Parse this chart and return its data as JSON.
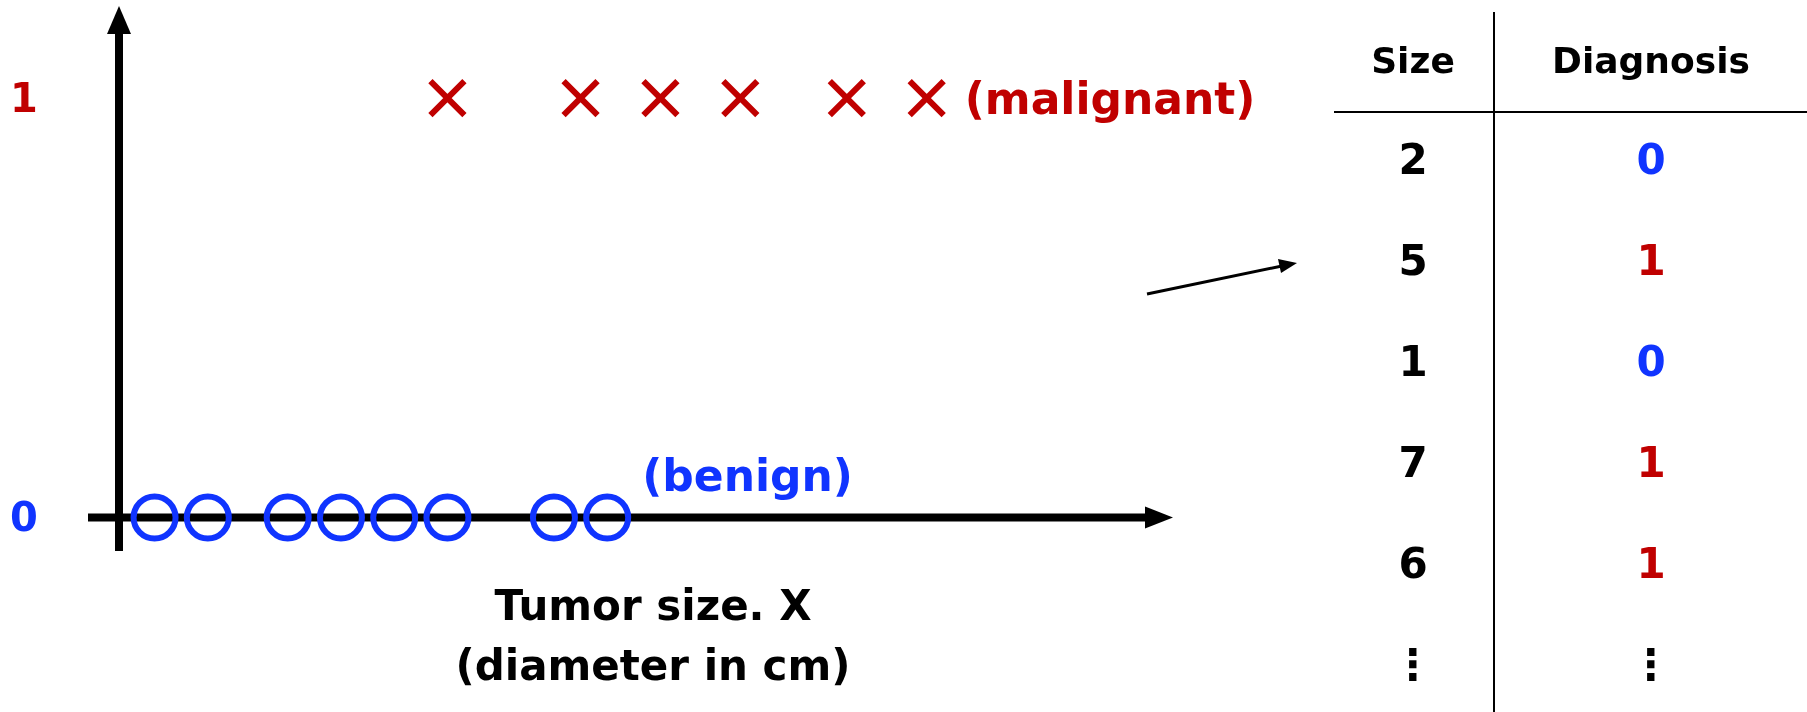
{
  "chart_data": [
    {
      "type": "scatter",
      "xlabel": "Tumor size. X\n(diameter in cm)",
      "categories": [
        null,
        null,
        null,
        null,
        null,
        null,
        null,
        null,
        null,
        null,
        null,
        null,
        null,
        null,
        null,
        null,
        null,
        null,
        null,
        null,
        null,
        null,
        null,
        null,
        null,
        null,
        null,
        null,
        null,
        null,
        null,
        null,
        null,
        null,
        null,
        null,
        null,
        null,
        null,
        null
      ],
      "ylim": [
        -0.08,
        1.22
      ],
      "yticks": [
        0,
        1
      ],
      "tick_labels": "y",
      "legend": "right",
      "series": [
        {
          "name": "(benign)",
          "color": "#1034ff",
          "marker": "circle",
          "values": [
            null,
            null,
            0,
            null,
            0,
            null,
            null,
            0,
            null,
            0,
            null,
            0,
            null,
            0,
            null,
            null,
            null,
            0,
            null,
            0,
            null,
            null,
            null,
            null,
            null,
            null,
            null,
            null,
            null,
            null,
            null,
            null,
            null,
            null,
            null,
            null,
            null,
            null,
            null,
            null
          ]
        },
        {
          "name": "(malignant)",
          "color": "#c00000",
          "marker": "cross",
          "values": [
            null,
            null,
            null,
            null,
            null,
            null,
            null,
            null,
            null,
            null,
            null,
            null,
            null,
            1,
            null,
            null,
            null,
            null,
            1,
            null,
            null,
            1,
            null,
            null,
            1,
            null,
            null,
            null,
            1,
            null,
            null,
            1,
            null,
            null,
            null,
            null,
            null,
            null,
            null,
            null
          ]
        }
      ]
    },
    {
      "type": "other",
      "annotations": [
        "Size",
        "Diagnosis",
        "2",
        "0",
        "5",
        "1",
        "1",
        "0",
        "7",
        "1",
        "6",
        "1",
        "⋮",
        "⋮"
      ]
    }
  ]
}
